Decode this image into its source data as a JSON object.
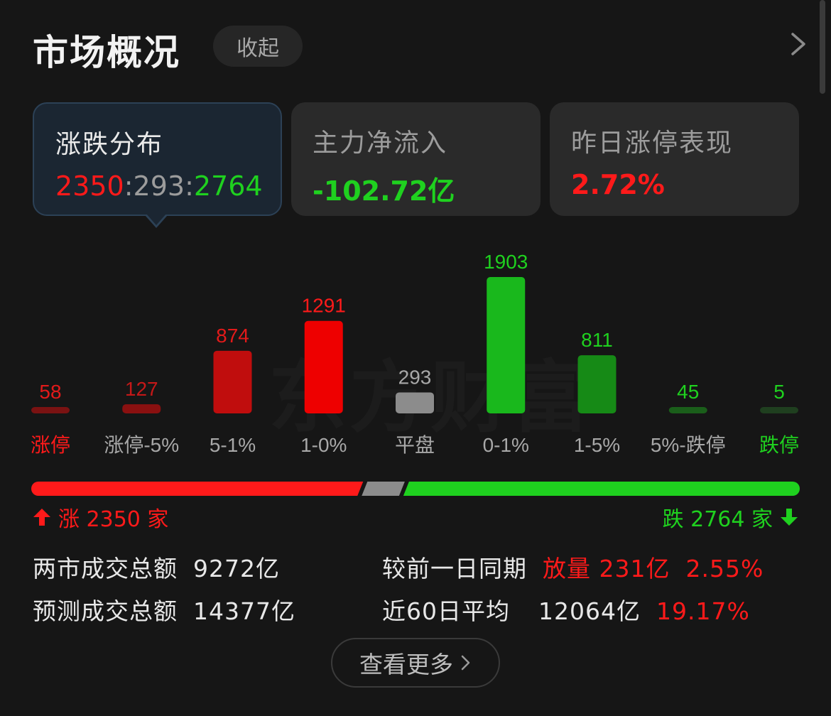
{
  "header": {
    "title": "市场概况",
    "collapse_label": "收起"
  },
  "cards": [
    {
      "label": "涨跌分布",
      "value_up": "2350",
      "sep1": ":",
      "value_flat": "293",
      "sep2": ":",
      "value_down": "2764"
    },
    {
      "label": "主力净流入",
      "value": "-102.72亿"
    },
    {
      "label": "昨日涨停表现",
      "value": "2.72%"
    }
  ],
  "watermark": "东方财富",
  "colors": {
    "up": "#ff1a1a",
    "down": "#1fd11f",
    "flat": "#8c8c8c"
  },
  "chart_data": {
    "type": "bar",
    "categories": [
      "涨停",
      "涨停-5%",
      "5-1%",
      "1-0%",
      "平盘",
      "0-1%",
      "1-5%",
      "5%-跌停",
      "跌停"
    ],
    "values": [
      58,
      127,
      874,
      1291,
      293,
      1903,
      811,
      45,
      5
    ],
    "bar_colors": [
      "#7a1212",
      "#8a1010",
      "#c00d0d",
      "#ee0000",
      "#8c8c8c",
      "#19b81c",
      "#168a16",
      "#1a5e1a",
      "#1f3f1f"
    ],
    "label_colors": [
      "#e21a1a",
      "#c41818",
      "#e21a1a",
      "#ff1a1a",
      "#a8a8a8",
      "#1fd11f",
      "#1fd11f",
      "#1fd11f",
      "#1fd11f"
    ],
    "category_label_colors": [
      "#ff1a1a",
      "#a8a8a8",
      "#a8a8a8",
      "#a8a8a8",
      "#a8a8a8",
      "#a8a8a8",
      "#a8a8a8",
      "#a8a8a8",
      "#1fd11f"
    ]
  },
  "summary": {
    "rise_label": "涨 2350 家",
    "fall_label": "跌 2764 家",
    "rise": 2350,
    "flat": 293,
    "fall": 2764
  },
  "stats": {
    "total_label": "两市成交总额",
    "total_value": "9272亿",
    "forecast_label": "预测成交总额",
    "forecast_value": "14377亿",
    "compare_label": "较前一日同期",
    "compare_value": "放量 231亿",
    "compare_pct": "2.55%",
    "avg_label": "近60日平均",
    "avg_value": "12064亿",
    "avg_pct": "19.17%"
  },
  "more_label": "查看更多"
}
